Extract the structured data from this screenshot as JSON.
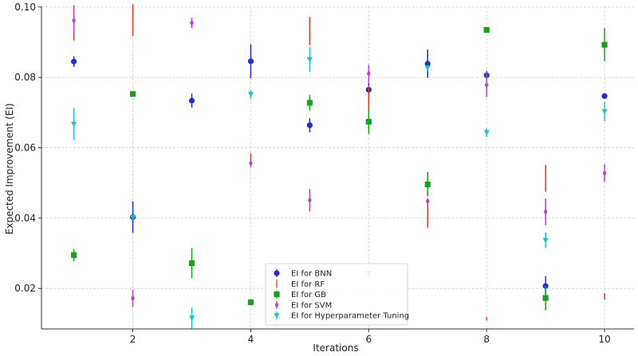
{
  "chart_data": {
    "type": "scatter",
    "title": "",
    "xlabel": "Iterations",
    "ylabel": "Expected Improvement (EI)",
    "xlim": [
      0.45,
      10.5
    ],
    "ylim": [
      0.0085,
      0.1002
    ],
    "xticks": [
      2,
      4,
      6,
      8,
      10
    ],
    "yticks": [
      0.02,
      0.04,
      0.06,
      0.08,
      0.1
    ],
    "ytick_labels": [
      "0.02",
      "0.04",
      "0.06",
      "0.08",
      "0.10"
    ],
    "grid": true,
    "legend_position": "bottom-center",
    "series": [
      {
        "name": "EI for BNN",
        "marker": "circle",
        "color": "#1f2fd6",
        "points": [
          {
            "x": 1,
            "y": 0.0845,
            "err": 0.0015
          },
          {
            "x": 2,
            "y": 0.0403,
            "err": 0.0045
          },
          {
            "x": 3,
            "y": 0.0734,
            "err": 0.002
          },
          {
            "x": 4,
            "y": 0.0846,
            "err": 0.0048
          },
          {
            "x": 5,
            "y": 0.0664,
            "err": 0.002
          },
          {
            "x": 6,
            "y": 0.0765,
            "err": 0.002
          },
          {
            "x": 7,
            "y": 0.0839,
            "err": 0.004
          },
          {
            "x": 8,
            "y": 0.0806,
            "err": 0.0012
          },
          {
            "x": 9,
            "y": 0.0207,
            "err": 0.0028
          },
          {
            "x": 10,
            "y": 0.0747,
            "err": 0.0007
          }
        ]
      },
      {
        "name": "EI for RF",
        "marker": "none",
        "color": "#e03a1e",
        "points": [
          {
            "x": 1,
            "y": 0.0955,
            "err": 0.005
          },
          {
            "x": 2,
            "y": 0.0963,
            "err": 0.0045
          },
          {
            "x": 3,
            "y": 0.0952,
            "err": 0.001
          },
          {
            "x": 4,
            "y": 0.0568,
            "err": 0.0016
          },
          {
            "x": 5,
            "y": 0.0932,
            "err": 0.004
          },
          {
            "x": 6,
            "y": 0.0742,
            "err": 0.0035
          },
          {
            "x": 7,
            "y": 0.0408,
            "err": 0.0035
          },
          {
            "x": 8,
            "y": 0.0114,
            "err": 0.0005
          },
          {
            "x": 9,
            "y": 0.0513,
            "err": 0.0038
          },
          {
            "x": 10,
            "y": 0.0177,
            "err": 0.0009
          }
        ]
      },
      {
        "name": "EI for GB",
        "marker": "square",
        "color": "#18a21b",
        "points": [
          {
            "x": 1,
            "y": 0.0295,
            "err": 0.0017
          },
          {
            "x": 2,
            "y": 0.0753,
            "err": 0.0005
          },
          {
            "x": 3,
            "y": 0.0272,
            "err": 0.0043
          },
          {
            "x": 4,
            "y": 0.0161,
            "err": 0.0004
          },
          {
            "x": 5,
            "y": 0.0728,
            "err": 0.0022
          },
          {
            "x": 6,
            "y": 0.0674,
            "err": 0.0035
          },
          {
            "x": 7,
            "y": 0.0496,
            "err": 0.0035
          },
          {
            "x": 8,
            "y": 0.0935,
            "err": 0.0004
          },
          {
            "x": 9,
            "y": 0.0173,
            "err": 0.0035
          },
          {
            "x": 10,
            "y": 0.0893,
            "err": 0.0047
          }
        ]
      },
      {
        "name": "EI for SVM",
        "marker": "diamond",
        "color": "#c23fc6",
        "points": [
          {
            "x": 1,
            "y": 0.0962,
            "err": 0.0042
          },
          {
            "x": 2,
            "y": 0.0172,
            "err": 0.0025
          },
          {
            "x": 3,
            "y": 0.0955,
            "err": 0.0015
          },
          {
            "x": 4,
            "y": 0.0556,
            "err": 0.0012
          },
          {
            "x": 5,
            "y": 0.0451,
            "err": 0.0032
          },
          {
            "x": 6,
            "y": 0.0811,
            "err": 0.0025
          },
          {
            "x": 7,
            "y": 0.0448,
            "err": 0.0008
          },
          {
            "x": 8,
            "y": 0.0779,
            "err": 0.0035
          },
          {
            "x": 9,
            "y": 0.0418,
            "err": 0.0038
          },
          {
            "x": 10,
            "y": 0.0528,
            "err": 0.0025
          }
        ]
      },
      {
        "name": "EI for Hyperparameter Tuning",
        "marker": "triangle",
        "color": "#1ec5c5",
        "points": [
          {
            "x": 1,
            "y": 0.0667,
            "err": 0.0045
          },
          {
            "x": 2,
            "y": 0.0402,
            "err": 0.0005
          },
          {
            "x": 3,
            "y": 0.0116,
            "err": 0.003
          },
          {
            "x": 4,
            "y": 0.0752,
            "err": 0.0013
          },
          {
            "x": 5,
            "y": 0.0851,
            "err": 0.0035
          },
          {
            "x": 6,
            "y": 0.0243,
            "err": 0.0008
          },
          {
            "x": 7,
            "y": 0.0827,
            "err": 0.0008
          },
          {
            "x": 8,
            "y": 0.0643,
            "err": 0.0012
          },
          {
            "x": 9,
            "y": 0.0337,
            "err": 0.0022
          },
          {
            "x": 10,
            "y": 0.0703,
            "err": 0.0027
          }
        ]
      }
    ]
  }
}
